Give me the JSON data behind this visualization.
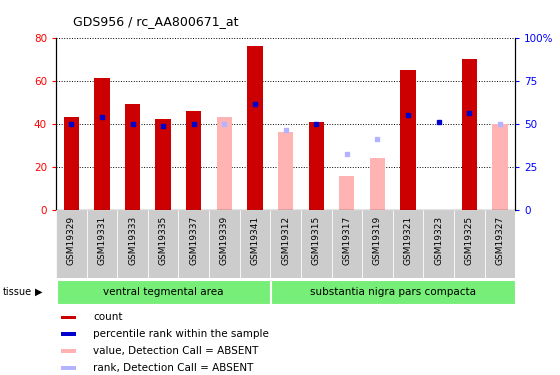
{
  "title": "GDS956 / rc_AA800671_at",
  "samples": [
    "GSM19329",
    "GSM19331",
    "GSM19333",
    "GSM19335",
    "GSM19337",
    "GSM19339",
    "GSM19341",
    "GSM19312",
    "GSM19315",
    "GSM19317",
    "GSM19319",
    "GSM19321",
    "GSM19323",
    "GSM19325",
    "GSM19327"
  ],
  "count_values": [
    43,
    61,
    49,
    42,
    46,
    null,
    76,
    null,
    41,
    null,
    null,
    65,
    null,
    70,
    null
  ],
  "rank_values": [
    40,
    43,
    40,
    39,
    40,
    null,
    49,
    null,
    40,
    null,
    null,
    44,
    41,
    45,
    null
  ],
  "absent_value_values": [
    null,
    null,
    null,
    null,
    null,
    43,
    null,
    36,
    null,
    16,
    24,
    null,
    null,
    null,
    40
  ],
  "absent_rank_values": [
    null,
    null,
    null,
    null,
    null,
    40,
    null,
    37,
    null,
    26,
    33,
    null,
    null,
    null,
    40
  ],
  "groups": [
    {
      "label": "ventral tegmental area",
      "start": 0,
      "end": 7
    },
    {
      "label": "substantia nigra pars compacta",
      "start": 7,
      "end": 15
    }
  ],
  "ylim": [
    0,
    80
  ],
  "y2lim": [
    0,
    100
  ],
  "yticks": [
    0,
    20,
    40,
    60,
    80
  ],
  "y2ticks": [
    0,
    25,
    50,
    75,
    100
  ],
  "count_color": "#cc0000",
  "rank_color": "#0000cc",
  "absent_value_color": "#ffb3b3",
  "absent_rank_color": "#b3b3ff",
  "group_color": "#77ee77",
  "tick_bg_color": "#cccccc",
  "bar_width": 0.5,
  "legend": [
    {
      "label": "count",
      "color": "#cc0000"
    },
    {
      "label": "percentile rank within the sample",
      "color": "#0000cc"
    },
    {
      "label": "value, Detection Call = ABSENT",
      "color": "#ffb3b3"
    },
    {
      "label": "rank, Detection Call = ABSENT",
      "color": "#b3b3ff"
    }
  ]
}
